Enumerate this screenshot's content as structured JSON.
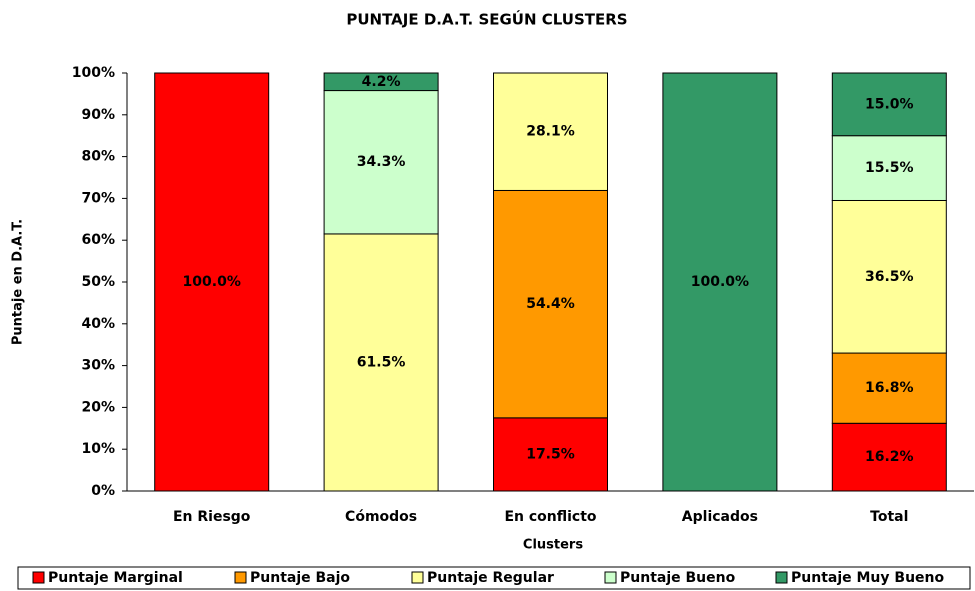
{
  "chart_data": {
    "type": "stacked_bar",
    "title": "PUNTAJE D.A.T. SEGÚN CLUSTERS",
    "x_label": "Clusters",
    "y_label": "Puntaje en D.A.T.",
    "categories": [
      "En Riesgo",
      "Cómodos",
      "En conflicto",
      "Aplicados",
      "Total"
    ],
    "series": [
      {
        "name": "Puntaje Marginal",
        "color": "#ff0000",
        "values": [
          100,
          null,
          17.5,
          null,
          16.2
        ],
        "value_labels": [
          "100.0%",
          null,
          "17.5%",
          null,
          "16.2%"
        ]
      },
      {
        "name": "Puntaje Bajo",
        "color": "#ff9900",
        "values": [
          null,
          null,
          54.4,
          null,
          16.8
        ],
        "value_labels": [
          null,
          null,
          "54.4%",
          null,
          "16.8%"
        ]
      },
      {
        "name": "Puntaje Regular",
        "color": "#ffff99",
        "values": [
          null,
          61.5,
          28.1,
          null,
          36.5
        ],
        "value_labels": [
          null,
          "61.5%",
          "28.1%",
          null,
          "36.5%"
        ]
      },
      {
        "name": "Puntaje Bueno",
        "color": "#ccffcc",
        "values": [
          null,
          34.3,
          null,
          null,
          15.5
        ],
        "value_labels": [
          null,
          "34.3%",
          null,
          null,
          "15.5%"
        ]
      },
      {
        "name": "Puntaje Muy Bueno",
        "color": "#339966",
        "values": [
          null,
          4.2,
          null,
          100,
          15.0
        ],
        "value_labels": [
          null,
          "4.2%",
          null,
          "100.0%",
          "15.0%"
        ]
      }
    ],
    "ylim": [
      0,
      100
    ],
    "yticks": [
      {
        "value": 0,
        "label": "0%"
      },
      {
        "value": 10,
        "label": "10%"
      },
      {
        "value": 20,
        "label": "20%"
      },
      {
        "value": 30,
        "label": "30%"
      },
      {
        "value": 40,
        "label": "40%"
      },
      {
        "value": 50,
        "label": "50%"
      },
      {
        "value": 60,
        "label": "60%"
      },
      {
        "value": 70,
        "label": "70%"
      },
      {
        "value": 80,
        "label": "80%"
      },
      {
        "value": 90,
        "label": "90%"
      },
      {
        "value": 100,
        "label": "100%"
      }
    ],
    "legend": "bottom"
  }
}
